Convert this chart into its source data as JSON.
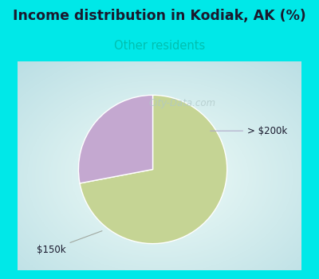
{
  "title": "Income distribution in Kodiak, AK (%)",
  "subtitle": "Other residents",
  "title_color": "#1a1a2e",
  "subtitle_color": "#00c0b0",
  "bg_color": "#00e8e8",
  "chart_bg": "#e0f0e8",
  "slices": [
    72,
    28
  ],
  "slice_colors": [
    "#c5d494",
    "#c4a8d0"
  ],
  "labels": [
    "$150k",
    "> $200k"
  ],
  "watermark": "City-Data.com",
  "watermark_color": "#b0c8c8",
  "label_color": "#1a1a2e",
  "annotation_line_color_0": "#a0a8a0",
  "annotation_line_color_1": "#b0a8c8"
}
